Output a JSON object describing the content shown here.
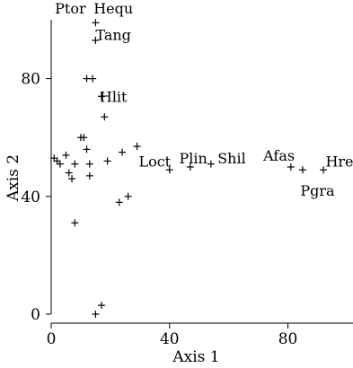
{
  "chart_data": {
    "type": "scatter",
    "title": "",
    "xlabel": "Axis 1",
    "ylabel": "Axis 2",
    "xlim": [
      0,
      102
    ],
    "ylim": [
      0,
      100
    ],
    "xticks": [
      0,
      40,
      80
    ],
    "yticks": [
      0,
      40,
      80
    ],
    "marker": "+",
    "grid": false,
    "points": [
      {
        "x": 1,
        "y": 53
      },
      {
        "x": 2,
        "y": 52
      },
      {
        "x": 3,
        "y": 51
      },
      {
        "x": 5,
        "y": 54
      },
      {
        "x": 6,
        "y": 48
      },
      {
        "x": 7,
        "y": 46
      },
      {
        "x": 8,
        "y": 31
      },
      {
        "x": 8,
        "y": 51
      },
      {
        "x": 10,
        "y": 60
      },
      {
        "x": 11,
        "y": 60
      },
      {
        "x": 12,
        "y": 56
      },
      {
        "x": 12,
        "y": 80
      },
      {
        "x": 13,
        "y": 47
      },
      {
        "x": 13,
        "y": 51
      },
      {
        "x": 14,
        "y": 80
      },
      {
        "x": 15,
        "y": 93
      },
      {
        "x": 15,
        "y": 99,
        "label": "Hequ"
      },
      {
        "x": 15,
        "y": 0
      },
      {
        "x": 17,
        "y": 3
      },
      {
        "x": 17,
        "y": 74
      },
      {
        "x": 18,
        "y": 67
      },
      {
        "x": 19,
        "y": 52
      },
      {
        "x": 23,
        "y": 38
      },
      {
        "x": 24,
        "y": 55
      },
      {
        "x": 26,
        "y": 40
      },
      {
        "x": 29,
        "y": 57
      },
      {
        "x": 40,
        "y": 49
      },
      {
        "x": 47,
        "y": 50
      },
      {
        "x": 54,
        "y": 51
      },
      {
        "x": 81,
        "y": 50
      },
      {
        "x": 85,
        "y": 49
      },
      {
        "x": 92,
        "y": 49
      }
    ],
    "annotations": [
      {
        "text": "Ptor",
        "x": 6.5,
        "y": 104
      },
      {
        "text": "Hequ",
        "x": 21,
        "y": 104
      },
      {
        "text": "Tang",
        "x": 21,
        "y": 95
      },
      {
        "text": "Hlit",
        "x": 21,
        "y": 74
      },
      {
        "text": "Loct",
        "x": 35,
        "y": 52
      },
      {
        "text": "Plin",
        "x": 48,
        "y": 53
      },
      {
        "text": "Shil",
        "x": 61,
        "y": 53
      },
      {
        "text": "Afas",
        "x": 77,
        "y": 54
      },
      {
        "text": "Pgra",
        "x": 90,
        "y": 42
      },
      {
        "text": "Hreg",
        "x": 99,
        "y": 52
      }
    ]
  }
}
